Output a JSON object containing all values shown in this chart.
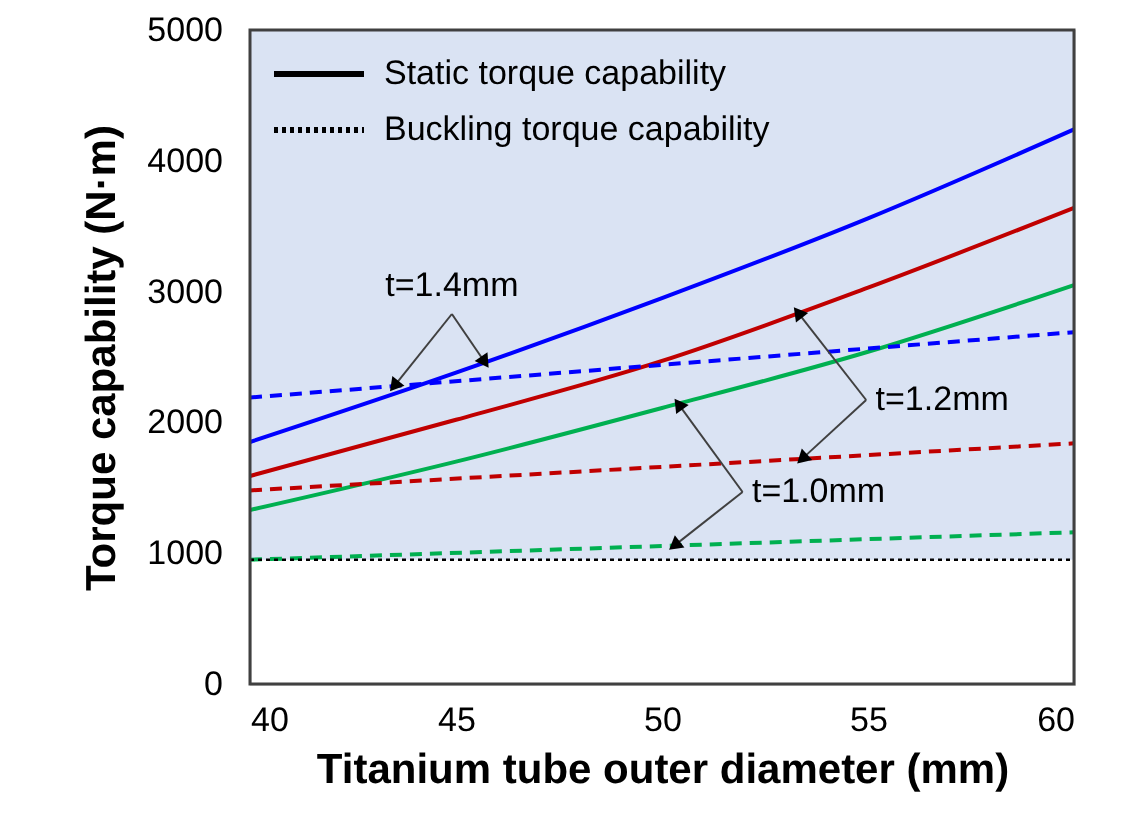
{
  "chart_data": {
    "type": "line",
    "xlabel": "Titanium tube outer diameter (mm)",
    "ylabel": "Torque capability (N·m)",
    "xlim": [
      40,
      60
    ],
    "xticks": [
      40,
      45,
      50,
      55,
      60
    ],
    "ylim": [
      0,
      5000
    ],
    "yticks": [
      0,
      1000,
      2000,
      3000,
      4000,
      5000
    ],
    "grid": false,
    "marker": "none",
    "series": [
      {
        "color": "#0000ff",
        "line_style": "solid",
        "x": [
          40,
          45,
          50,
          55,
          60
        ],
        "values": [
          1850,
          2380,
          2950,
          3560,
          4240
        ]
      },
      {
        "color": "#c00000",
        "line_style": "solid",
        "x": [
          40,
          45,
          50,
          55,
          60
        ],
        "values": [
          1590,
          2020,
          2470,
          3030,
          3640
        ]
      },
      {
        "color": "#00b050",
        "line_style": "solid",
        "x": [
          40,
          45,
          50,
          55,
          60
        ],
        "values": [
          1330,
          1700,
          2110,
          2540,
          3050
        ]
      },
      {
        "color": "#0000ff",
        "line_style": "dashed",
        "x": [
          40,
          60
        ],
        "values": [
          2190,
          2690
        ]
      },
      {
        "color": "#c00000",
        "line_style": "dashed",
        "x": [
          40,
          60
        ],
        "values": [
          1480,
          1840
        ]
      },
      {
        "color": "#00b050",
        "line_style": "dashed",
        "x": [
          40,
          60
        ],
        "values": [
          950,
          1160
        ]
      }
    ],
    "ref_lines": [
      {
        "axis": "y",
        "value": 950,
        "color": "#000000",
        "line_style": "dotted"
      }
    ],
    "bands": [
      {
        "axis": "y",
        "from": 950,
        "to": 5000,
        "color": "#dae3f3"
      }
    ],
    "annotations": [
      "Static torque capability",
      "Buckling torque capability",
      {
        "text": "t=1.4mm",
        "x": 45.7,
        "y": 2460
      },
      {
        "text": "t=1.2mm",
        "x": 53.3,
        "y": 2840
      },
      {
        "text": "t=1.0mm",
        "x": 50.4,
        "y": 2140
      }
    ]
  }
}
